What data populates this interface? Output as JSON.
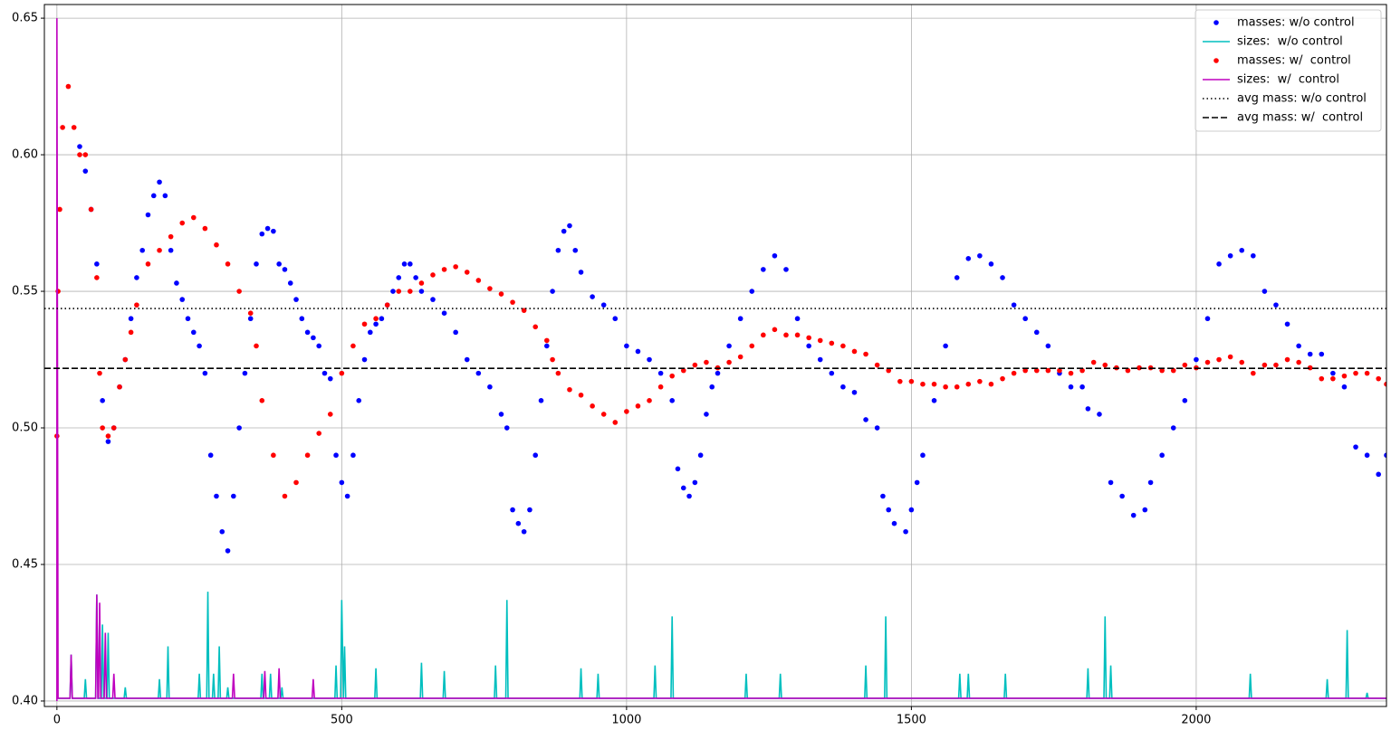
{
  "chart_data": {
    "type": "line",
    "grid": true,
    "legend": "upper right",
    "xlim": [
      -22,
      2334
    ],
    "ylim": [
      0.398,
      0.655
    ],
    "xticks": [
      0,
      500,
      1000,
      1500,
      2000
    ],
    "yticks": [
      {
        "value": 0.4,
        "label": "0.40"
      },
      0.45,
      {
        "value": 0.5,
        "label": "0.50"
      },
      0.55,
      {
        "value": 0.6,
        "label": "0.60"
      },
      0.65
    ],
    "series": [
      {
        "name": "masses: w/o control",
        "kind": "scatter",
        "color": "#0000ff",
        "x": [
          40,
          50,
          60,
          70,
          80,
          90,
          100,
          110,
          120,
          130,
          140,
          150,
          160,
          170,
          180,
          190,
          200,
          210,
          220,
          230,
          240,
          250,
          260,
          270,
          280,
          290,
          300,
          310,
          320,
          330,
          340,
          350,
          360,
          370,
          380,
          390,
          400,
          410,
          420,
          430,
          440,
          450,
          460,
          470,
          480,
          490,
          500,
          510,
          520,
          530,
          540,
          550,
          560,
          570,
          580,
          590,
          600,
          610,
          620,
          630,
          640,
          660,
          680,
          700,
          720,
          740,
          760,
          780,
          790,
          800,
          810,
          820,
          830,
          840,
          850,
          860,
          870,
          880,
          890,
          900,
          910,
          920,
          940,
          960,
          980,
          1000,
          1020,
          1040,
          1060,
          1080,
          1090,
          1100,
          1110,
          1120,
          1130,
          1140,
          1150,
          1160,
          1180,
          1200,
          1220,
          1240,
          1260,
          1280,
          1300,
          1320,
          1340,
          1360,
          1380,
          1400,
          1420,
          1440,
          1450,
          1460,
          1470,
          1490,
          1500,
          1510,
          1520,
          1540,
          1560,
          1580,
          1600,
          1620,
          1640,
          1660,
          1680,
          1700,
          1720,
          1740,
          1760,
          1780,
          1800,
          1810,
          1830,
          1850,
          1870,
          1890,
          1910,
          1920,
          1940,
          1960,
          1980,
          2000,
          2020,
          2040,
          2060,
          2080,
          2100,
          2120,
          2140,
          2160,
          2180,
          2200,
          2220,
          2240,
          2260,
          2280,
          2300,
          2320,
          2334
        ],
        "values": [
          0.603,
          0.594,
          0.58,
          0.56,
          0.51,
          0.495,
          0.5,
          0.515,
          0.525,
          0.54,
          0.555,
          0.565,
          0.578,
          0.585,
          0.59,
          0.585,
          0.565,
          0.553,
          0.547,
          0.54,
          0.535,
          0.53,
          0.52,
          0.49,
          0.475,
          0.462,
          0.455,
          0.475,
          0.5,
          0.52,
          0.54,
          0.56,
          0.571,
          0.573,
          0.572,
          0.56,
          0.558,
          0.553,
          0.547,
          0.54,
          0.535,
          0.533,
          0.53,
          0.52,
          0.518,
          0.49,
          0.48,
          0.475,
          0.49,
          0.51,
          0.525,
          0.535,
          0.538,
          0.54,
          0.545,
          0.55,
          0.555,
          0.56,
          0.56,
          0.555,
          0.55,
          0.547,
          0.542,
          0.535,
          0.525,
          0.52,
          0.515,
          0.505,
          0.5,
          0.47,
          0.465,
          0.462,
          0.47,
          0.49,
          0.51,
          0.53,
          0.55,
          0.565,
          0.572,
          0.574,
          0.565,
          0.557,
          0.548,
          0.545,
          0.54,
          0.53,
          0.528,
          0.525,
          0.52,
          0.51,
          0.485,
          0.478,
          0.475,
          0.48,
          0.49,
          0.505,
          0.515,
          0.52,
          0.53,
          0.54,
          0.55,
          0.558,
          0.563,
          0.558,
          0.54,
          0.53,
          0.525,
          0.52,
          0.515,
          0.513,
          0.503,
          0.5,
          0.475,
          0.47,
          0.465,
          0.462,
          0.47,
          0.48,
          0.49,
          0.51,
          0.53,
          0.555,
          0.562,
          0.563,
          0.56,
          0.555,
          0.545,
          0.54,
          0.535,
          0.53,
          0.52,
          0.515,
          0.515,
          0.507,
          0.505,
          0.48,
          0.475,
          0.468,
          0.47,
          0.48,
          0.49,
          0.5,
          0.51,
          0.525,
          0.54,
          0.56,
          0.563,
          0.565,
          0.563,
          0.55,
          0.545,
          0.538,
          0.53,
          0.527,
          0.527,
          0.52,
          0.515,
          0.493,
          0.49,
          0.483,
          0.49
        ]
      },
      {
        "name": "sizes:  w/o control",
        "kind": "line",
        "color": "#00bfbf",
        "x": [
          0,
          23,
          25,
          27,
          48,
          50,
          52,
          68,
          70,
          72,
          78,
          80,
          82,
          88,
          90,
          92,
          118,
          120,
          122,
          178,
          180,
          182,
          193,
          195,
          197,
          248,
          250,
          252,
          263,
          265,
          267,
          273,
          275,
          277,
          283,
          285,
          287,
          298,
          300,
          302,
          358,
          360,
          362,
          373,
          375,
          377,
          393,
          395,
          397,
          488,
          490,
          492,
          498,
          500,
          503,
          505,
          507,
          558,
          560,
          562,
          638,
          640,
          642,
          678,
          680,
          682,
          768,
          770,
          772,
          788,
          790,
          792,
          918,
          920,
          922,
          948,
          950,
          952,
          1048,
          1050,
          1052,
          1078,
          1080,
          1082,
          1208,
          1210,
          1212,
          1268,
          1270,
          1272,
          1418,
          1420,
          1422,
          1453,
          1455,
          1457,
          1583,
          1585,
          1587,
          1598,
          1600,
          1602,
          1663,
          1665,
          1667,
          1808,
          1810,
          1812,
          1838,
          1840,
          1842,
          1848,
          1850,
          1852,
          2093,
          2095,
          2097,
          2228,
          2230,
          2232,
          2263,
          2265,
          2267,
          2298,
          2300,
          2302,
          2334
        ],
        "values": [
          0.401,
          0.401,
          0.417,
          0.401,
          0.401,
          0.408,
          0.401,
          0.401,
          0.439,
          0.401,
          0.401,
          0.428,
          0.401,
          0.401,
          0.425,
          0.401,
          0.401,
          0.405,
          0.401,
          0.401,
          0.408,
          0.401,
          0.401,
          0.42,
          0.401,
          0.401,
          0.41,
          0.401,
          0.401,
          0.44,
          0.401,
          0.401,
          0.41,
          0.401,
          0.401,
          0.42,
          0.401,
          0.401,
          0.405,
          0.401,
          0.401,
          0.41,
          0.401,
          0.401,
          0.41,
          0.401,
          0.401,
          0.405,
          0.401,
          0.401,
          0.413,
          0.401,
          0.401,
          0.437,
          0.401,
          0.42,
          0.401,
          0.401,
          0.412,
          0.401,
          0.401,
          0.414,
          0.401,
          0.401,
          0.411,
          0.401,
          0.401,
          0.413,
          0.401,
          0.401,
          0.437,
          0.401,
          0.401,
          0.412,
          0.401,
          0.401,
          0.41,
          0.401,
          0.401,
          0.413,
          0.401,
          0.401,
          0.431,
          0.401,
          0.401,
          0.41,
          0.401,
          0.401,
          0.41,
          0.401,
          0.401,
          0.413,
          0.401,
          0.401,
          0.431,
          0.401,
          0.401,
          0.41,
          0.401,
          0.401,
          0.41,
          0.401,
          0.401,
          0.41,
          0.401,
          0.401,
          0.412,
          0.401,
          0.401,
          0.431,
          0.401,
          0.401,
          0.413,
          0.401,
          0.401,
          0.41,
          0.401,
          0.401,
          0.408,
          0.401,
          0.401,
          0.426,
          0.401,
          0.401,
          0.403,
          0.401,
          0.401
        ]
      },
      {
        "name": "masses: w/  control",
        "kind": "scatter",
        "color": "#ff0000",
        "x": [
          0,
          2,
          5,
          10,
          20,
          30,
          40,
          50,
          60,
          70,
          75,
          80,
          90,
          100,
          110,
          120,
          130,
          140,
          160,
          180,
          200,
          220,
          240,
          260,
          280,
          300,
          320,
          340,
          350,
          360,
          380,
          400,
          420,
          440,
          460,
          480,
          500,
          520,
          540,
          560,
          580,
          600,
          620,
          640,
          660,
          680,
          700,
          720,
          740,
          760,
          780,
          800,
          820,
          840,
          860,
          870,
          880,
          900,
          920,
          940,
          960,
          980,
          1000,
          1020,
          1040,
          1060,
          1080,
          1100,
          1120,
          1140,
          1160,
          1180,
          1200,
          1220,
          1240,
          1260,
          1280,
          1300,
          1320,
          1340,
          1360,
          1380,
          1400,
          1420,
          1440,
          1460,
          1480,
          1500,
          1520,
          1540,
          1560,
          1580,
          1600,
          1620,
          1640,
          1660,
          1680,
          1700,
          1720,
          1740,
          1760,
          1780,
          1800,
          1820,
          1840,
          1860,
          1880,
          1900,
          1920,
          1940,
          1960,
          1980,
          2000,
          2020,
          2040,
          2060,
          2080,
          2100,
          2120,
          2140,
          2160,
          2180,
          2200,
          2220,
          2240,
          2260,
          2280,
          2300,
          2320,
          2334
        ],
        "values": [
          0.497,
          0.55,
          0.58,
          0.61,
          0.625,
          0.61,
          0.6,
          0.6,
          0.58,
          0.555,
          0.52,
          0.5,
          0.497,
          0.5,
          0.515,
          0.525,
          0.535,
          0.545,
          0.56,
          0.565,
          0.57,
          0.575,
          0.577,
          0.573,
          0.567,
          0.56,
          0.55,
          0.542,
          0.53,
          0.51,
          0.49,
          0.475,
          0.48,
          0.49,
          0.498,
          0.505,
          0.52,
          0.53,
          0.538,
          0.54,
          0.545,
          0.55,
          0.55,
          0.553,
          0.556,
          0.558,
          0.559,
          0.557,
          0.554,
          0.551,
          0.549,
          0.546,
          0.543,
          0.537,
          0.532,
          0.525,
          0.52,
          0.514,
          0.512,
          0.508,
          0.505,
          0.502,
          0.506,
          0.508,
          0.51,
          0.515,
          0.519,
          0.521,
          0.523,
          0.524,
          0.522,
          0.524,
          0.526,
          0.53,
          0.534,
          0.536,
          0.534,
          0.534,
          0.533,
          0.532,
          0.531,
          0.53,
          0.528,
          0.527,
          0.523,
          0.521,
          0.517,
          0.517,
          0.516,
          0.516,
          0.515,
          0.515,
          0.516,
          0.517,
          0.516,
          0.518,
          0.52,
          0.521,
          0.521,
          0.521,
          0.521,
          0.52,
          0.521,
          0.524,
          0.523,
          0.522,
          0.521,
          0.522,
          0.522,
          0.521,
          0.521,
          0.523,
          0.522,
          0.524,
          0.525,
          0.526,
          0.524,
          0.52,
          0.523,
          0.523,
          0.525,
          0.524,
          0.522,
          0.518,
          0.518,
          0.519,
          0.52,
          0.52,
          0.518,
          0.516
        ]
      },
      {
        "name": "sizes:  w/  control",
        "kind": "line",
        "color": "#bf00bf",
        "x": [
          0,
          0,
          2,
          23,
          25,
          27,
          68,
          70,
          72,
          73,
          75,
          77,
          83,
          85,
          87,
          98,
          100,
          102,
          308,
          310,
          312,
          363,
          365,
          367,
          388,
          390,
          392,
          448,
          450,
          452,
          2334
        ],
        "values": [
          0.4,
          0.65,
          0.401,
          0.401,
          0.417,
          0.401,
          0.401,
          0.439,
          0.401,
          0.401,
          0.436,
          0.401,
          0.401,
          0.425,
          0.401,
          0.401,
          0.41,
          0.401,
          0.401,
          0.41,
          0.401,
          0.401,
          0.411,
          0.401,
          0.401,
          0.412,
          0.401,
          0.401,
          0.408,
          0.401,
          0.401
        ]
      },
      {
        "name": "avg mass: w/o control",
        "kind": "hline",
        "dash": "dotted",
        "color": "#000000",
        "value": 0.5437
      },
      {
        "name": "avg mass: w/  control",
        "kind": "hline",
        "dash": "dashed",
        "color": "#000000",
        "value": 0.5218
      }
    ]
  }
}
